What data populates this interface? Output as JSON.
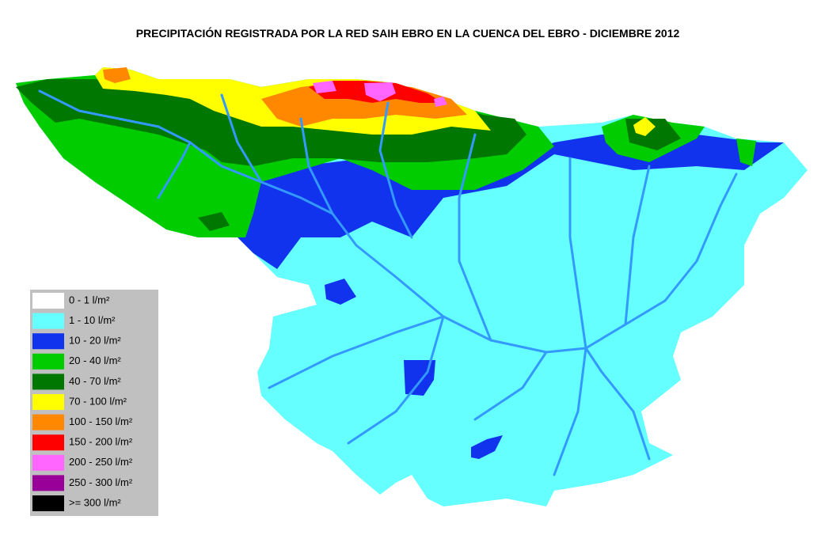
{
  "title": "PRECIPITACIÓN REGISTRADA POR LA RED SAIH EBRO EN LA CUENCA DEL EBRO - DICIEMBRE 2012",
  "legend": {
    "items": [
      {
        "label": "0 - 1 l/m²",
        "color": "#ffffff"
      },
      {
        "label": "1 - 10 l/m²",
        "color": "#66ffff"
      },
      {
        "label": "10 - 20 l/m²",
        "color": "#1133ee"
      },
      {
        "label": "20 - 40 l/m²",
        "color": "#00cc00"
      },
      {
        "label": "40 - 70 l/m²",
        "color": "#007700"
      },
      {
        "label": "70 - 100 l/m²",
        "color": "#ffff00"
      },
      {
        "label": "100 - 150 l/m²",
        "color": "#ff8800"
      },
      {
        "label": "150 - 200 l/m²",
        "color": "#ff0000"
      },
      {
        "label": "200 - 250 l/m²",
        "color": "#ff66ff"
      },
      {
        "label": "250 - 300 l/m²",
        "color": "#990099"
      },
      {
        "label": ">= 300 l/m²",
        "color": "#000000"
      }
    ]
  }
}
